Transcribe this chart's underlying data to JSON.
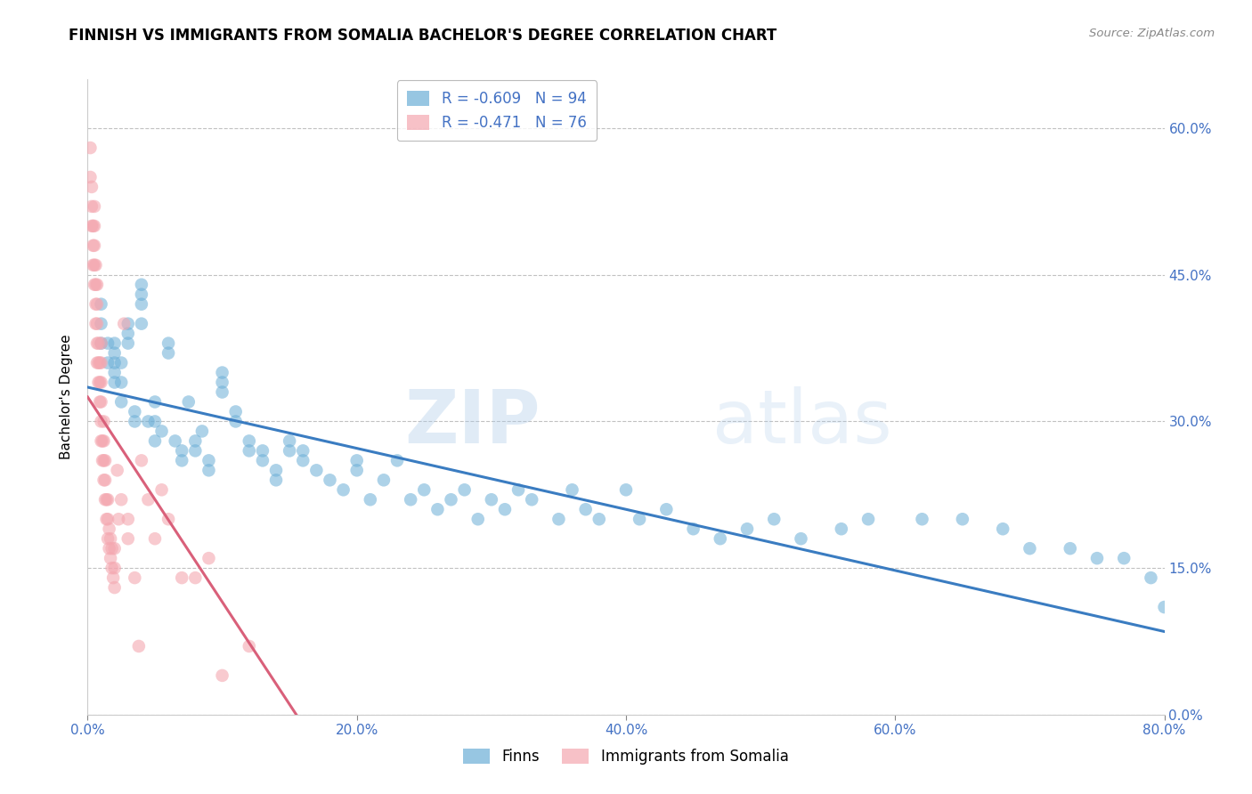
{
  "title": "FINNISH VS IMMIGRANTS FROM SOMALIA BACHELOR'S DEGREE CORRELATION CHART",
  "source": "Source: ZipAtlas.com",
  "ylabel": "Bachelor's Degree",
  "watermark": "ZIPatlas",
  "xlim": [
    0.0,
    0.8
  ],
  "ylim": [
    0.0,
    0.65
  ],
  "yticks": [
    0.0,
    0.15,
    0.3,
    0.45,
    0.6
  ],
  "xticks": [
    0.0,
    0.2,
    0.4,
    0.6,
    0.8
  ],
  "finns_R": "-0.609",
  "finns_N": "94",
  "somalia_R": "-0.471",
  "somalia_N": "76",
  "finns_color": "#6baed6",
  "somalia_color": "#f4a7b0",
  "finns_line_color": "#3a7cc1",
  "somalia_line_color": "#d9607a",
  "background_color": "#ffffff",
  "grid_color": "#bbbbbb",
  "finns_scatter_x": [
    0.01,
    0.01,
    0.01,
    0.015,
    0.015,
    0.02,
    0.02,
    0.02,
    0.02,
    0.02,
    0.025,
    0.025,
    0.025,
    0.03,
    0.03,
    0.03,
    0.035,
    0.035,
    0.04,
    0.04,
    0.04,
    0.04,
    0.045,
    0.05,
    0.05,
    0.05,
    0.055,
    0.06,
    0.06,
    0.065,
    0.07,
    0.07,
    0.075,
    0.08,
    0.08,
    0.085,
    0.09,
    0.09,
    0.1,
    0.1,
    0.1,
    0.11,
    0.11,
    0.12,
    0.12,
    0.13,
    0.13,
    0.14,
    0.14,
    0.15,
    0.15,
    0.16,
    0.16,
    0.17,
    0.18,
    0.19,
    0.2,
    0.2,
    0.21,
    0.22,
    0.23,
    0.24,
    0.25,
    0.26,
    0.27,
    0.28,
    0.29,
    0.3,
    0.31,
    0.32,
    0.33,
    0.35,
    0.36,
    0.37,
    0.38,
    0.4,
    0.41,
    0.43,
    0.45,
    0.47,
    0.49,
    0.51,
    0.53,
    0.56,
    0.58,
    0.62,
    0.65,
    0.68,
    0.7,
    0.73,
    0.75,
    0.77,
    0.79,
    0.8
  ],
  "finns_scatter_y": [
    0.38,
    0.4,
    0.42,
    0.36,
    0.38,
    0.34,
    0.35,
    0.36,
    0.37,
    0.38,
    0.32,
    0.34,
    0.36,
    0.38,
    0.39,
    0.4,
    0.3,
    0.31,
    0.4,
    0.42,
    0.43,
    0.44,
    0.3,
    0.28,
    0.3,
    0.32,
    0.29,
    0.37,
    0.38,
    0.28,
    0.26,
    0.27,
    0.32,
    0.27,
    0.28,
    0.29,
    0.25,
    0.26,
    0.33,
    0.34,
    0.35,
    0.3,
    0.31,
    0.27,
    0.28,
    0.26,
    0.27,
    0.24,
    0.25,
    0.27,
    0.28,
    0.26,
    0.27,
    0.25,
    0.24,
    0.23,
    0.25,
    0.26,
    0.22,
    0.24,
    0.26,
    0.22,
    0.23,
    0.21,
    0.22,
    0.23,
    0.2,
    0.22,
    0.21,
    0.23,
    0.22,
    0.2,
    0.23,
    0.21,
    0.2,
    0.23,
    0.2,
    0.21,
    0.19,
    0.18,
    0.19,
    0.2,
    0.18,
    0.19,
    0.2,
    0.2,
    0.2,
    0.19,
    0.17,
    0.17,
    0.16,
    0.16,
    0.14,
    0.11
  ],
  "somalia_scatter_x": [
    0.002,
    0.002,
    0.003,
    0.003,
    0.003,
    0.004,
    0.004,
    0.004,
    0.005,
    0.005,
    0.005,
    0.005,
    0.005,
    0.006,
    0.006,
    0.006,
    0.006,
    0.007,
    0.007,
    0.007,
    0.007,
    0.007,
    0.008,
    0.008,
    0.008,
    0.009,
    0.009,
    0.009,
    0.01,
    0.01,
    0.01,
    0.01,
    0.01,
    0.01,
    0.011,
    0.011,
    0.012,
    0.012,
    0.012,
    0.012,
    0.013,
    0.013,
    0.013,
    0.014,
    0.014,
    0.015,
    0.015,
    0.015,
    0.016,
    0.016,
    0.017,
    0.017,
    0.018,
    0.018,
    0.019,
    0.02,
    0.02,
    0.02,
    0.022,
    0.023,
    0.025,
    0.027,
    0.03,
    0.03,
    0.035,
    0.038,
    0.04,
    0.045,
    0.05,
    0.055,
    0.06,
    0.07,
    0.08,
    0.09,
    0.1,
    0.12
  ],
  "somalia_scatter_y": [
    0.55,
    0.58,
    0.5,
    0.52,
    0.54,
    0.46,
    0.48,
    0.5,
    0.44,
    0.46,
    0.48,
    0.5,
    0.52,
    0.4,
    0.42,
    0.44,
    0.46,
    0.36,
    0.38,
    0.4,
    0.42,
    0.44,
    0.34,
    0.36,
    0.38,
    0.32,
    0.34,
    0.36,
    0.28,
    0.3,
    0.32,
    0.34,
    0.36,
    0.38,
    0.26,
    0.28,
    0.24,
    0.26,
    0.28,
    0.3,
    0.22,
    0.24,
    0.26,
    0.2,
    0.22,
    0.18,
    0.2,
    0.22,
    0.17,
    0.19,
    0.16,
    0.18,
    0.15,
    0.17,
    0.14,
    0.13,
    0.15,
    0.17,
    0.25,
    0.2,
    0.22,
    0.4,
    0.18,
    0.2,
    0.14,
    0.07,
    0.26,
    0.22,
    0.18,
    0.23,
    0.2,
    0.14,
    0.14,
    0.16,
    0.04,
    0.07
  ],
  "finns_trendline_x": [
    0.0,
    0.8
  ],
  "finns_trendline_y": [
    0.335,
    0.085
  ],
  "somalia_trendline_x": [
    0.0,
    0.155
  ],
  "somalia_trendline_y": [
    0.325,
    0.0
  ],
  "legend_finns_label": "Finns",
  "legend_somalia_label": "Immigrants from Somalia",
  "title_fontsize": 12,
  "tick_label_color": "#4472c4",
  "legend_label_color": "#4472c4"
}
